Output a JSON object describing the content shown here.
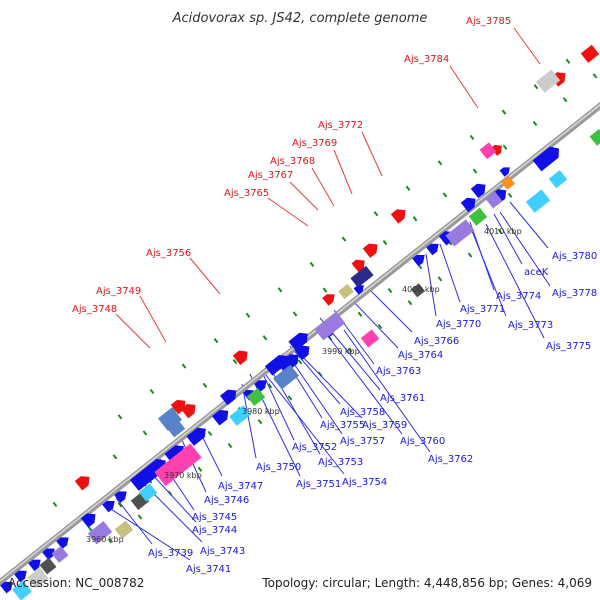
{
  "title": "Acidovorax sp. JS42, complete genome",
  "footer": {
    "accession": "Accession: NC_008782",
    "summary": "Topology: circular; Length: 4,448,856 bp; Genes: 4,069"
  },
  "colors": {
    "backbone": "#9a9a9a",
    "forward_gene": "#1010e6",
    "reverse_gene": "#ee1111",
    "reverse_label": "#e0141e",
    "forward_label": "#1a1ad6",
    "leader_forward": "#3030e0",
    "leader_reverse": "#e04040",
    "tick_dots": "#1a8a1a",
    "special": [
      "#5a82c8",
      "#ff40b0",
      "#40d0ff",
      "#9a7ae0",
      "#c8c080",
      "#505050",
      "#40c040",
      "#ff9020",
      "#2a2a8a",
      "#cccccc"
    ]
  },
  "scale_labels": [
    "3960 kbp",
    "3970 kbp",
    "3980 kbp",
    "3990 kbp",
    "4000 kbp",
    "4010 kbp"
  ],
  "reverse_labels": [
    "Ajs_3785",
    "Ajs_3784",
    "Ajs_3772",
    "Ajs_3769",
    "Ajs_3768",
    "Ajs_3767",
    "Ajs_3765",
    "Ajs_3756",
    "Ajs_3749",
    "Ajs_3748"
  ],
  "forward_labels": [
    "Ajs_3780",
    "aceK",
    "Ajs_3778",
    "Ajs_3774",
    "Ajs_3773",
    "Ajs_3775",
    "Ajs_3771",
    "Ajs_3770",
    "Ajs_3766",
    "Ajs_3764",
    "Ajs_3763",
    "Ajs_3761",
    "Ajs_3758",
    "Ajs_3759",
    "Ajs_3755",
    "Ajs_3757",
    "Ajs_3760",
    "Ajs_3752",
    "Ajs_3762",
    "Ajs_3753",
    "Ajs_3750",
    "Ajs_3751",
    "Ajs_3754",
    "Ajs_3747",
    "Ajs_3746",
    "Ajs_3745",
    "Ajs_3744",
    "Ajs_3743",
    "Ajs_3739",
    "Ajs_3741"
  ]
}
